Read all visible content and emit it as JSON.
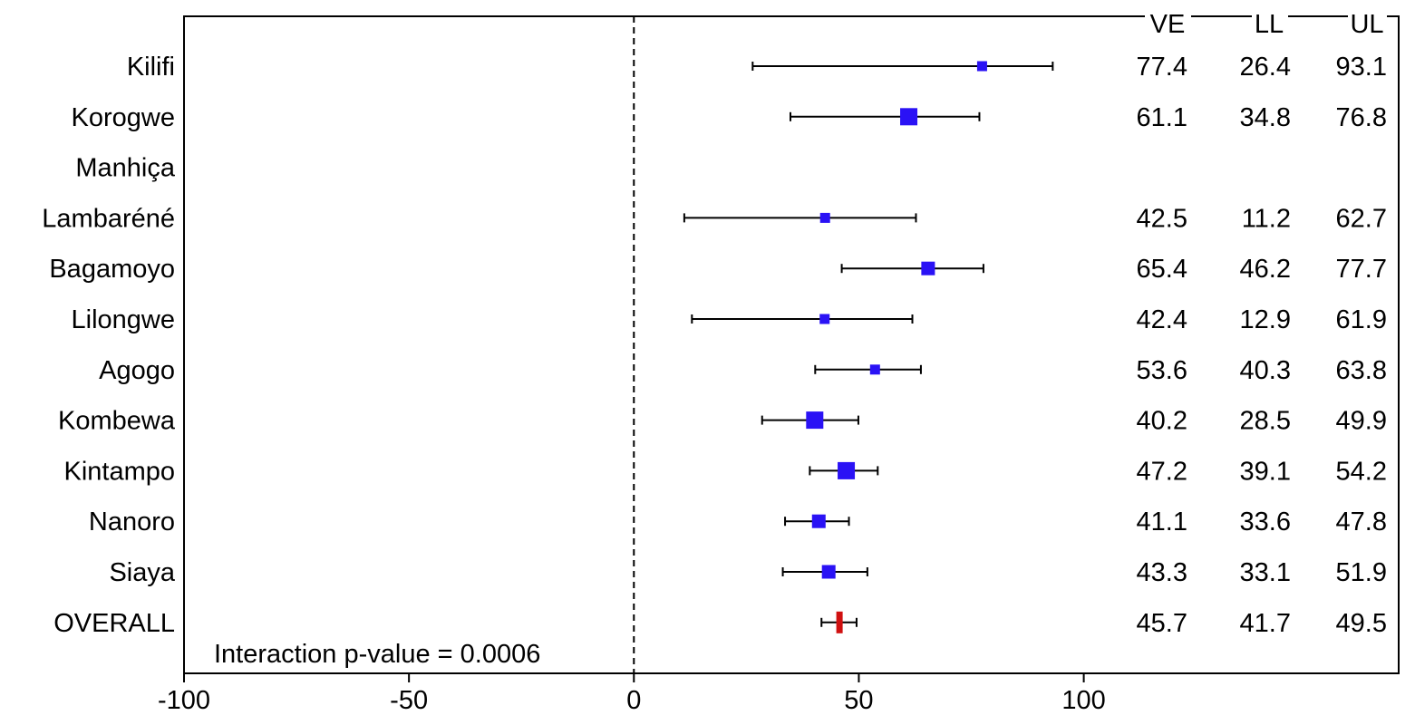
{
  "chart_data": {
    "type": "forest",
    "xlim": [
      -100,
      170
    ],
    "xticks": [
      "-100",
      "-50",
      "0",
      "50",
      "100"
    ],
    "reference_line": 0,
    "column_headers": [
      "VE",
      "LL",
      "UL"
    ],
    "annotation": "Interaction p-value = 0.0006",
    "colors": {
      "site_marker": "#2a12f5",
      "overall_marker": "#d01010",
      "ci_line": "#000000",
      "axis": "#000000"
    },
    "rows": [
      {
        "label": "Kilifi",
        "ve": 77.4,
        "ll": 26.4,
        "ul": 93.1,
        "ve_text": "77.4",
        "ll_text": "26.4",
        "ul_text": "93.1",
        "weight": "small"
      },
      {
        "label": "Korogwe",
        "ve": 61.1,
        "ll": 34.8,
        "ul": 76.8,
        "ve_text": "61.1",
        "ll_text": "34.8",
        "ul_text": "76.8",
        "weight": "large"
      },
      {
        "label": "Manhiça",
        "ve": null,
        "ll": null,
        "ul": null,
        "ve_text": "",
        "ll_text": "",
        "ul_text": "",
        "weight": "none"
      },
      {
        "label": "Lambaréné",
        "ve": 42.5,
        "ll": 11.2,
        "ul": 62.7,
        "ve_text": "42.5",
        "ll_text": "11.2",
        "ul_text": "62.7",
        "weight": "small"
      },
      {
        "label": "Bagamoyo",
        "ve": 65.4,
        "ll": 46.2,
        "ul": 77.7,
        "ve_text": "65.4",
        "ll_text": "46.2",
        "ul_text": "77.7",
        "weight": "medium"
      },
      {
        "label": "Lilongwe",
        "ve": 42.4,
        "ll": 12.9,
        "ul": 61.9,
        "ve_text": "42.4",
        "ll_text": "12.9",
        "ul_text": "61.9",
        "weight": "small"
      },
      {
        "label": "Agogo",
        "ve": 53.6,
        "ll": 40.3,
        "ul": 63.8,
        "ve_text": "53.6",
        "ll_text": "40.3",
        "ul_text": "63.8",
        "weight": "small"
      },
      {
        "label": "Kombewa",
        "ve": 40.2,
        "ll": 28.5,
        "ul": 49.9,
        "ve_text": "40.2",
        "ll_text": "28.5",
        "ul_text": "49.9",
        "weight": "large"
      },
      {
        "label": "Kintampo",
        "ve": 47.2,
        "ll": 39.1,
        "ul": 54.2,
        "ve_text": "47.2",
        "ll_text": "39.1",
        "ul_text": "54.2",
        "weight": "large"
      },
      {
        "label": "Nanoro",
        "ve": 41.1,
        "ll": 33.6,
        "ul": 47.8,
        "ve_text": "41.1",
        "ll_text": "33.6",
        "ul_text": "47.8",
        "weight": "medium"
      },
      {
        "label": "Siaya",
        "ve": 43.3,
        "ll": 33.1,
        "ul": 51.9,
        "ve_text": "43.3",
        "ll_text": "33.1",
        "ul_text": "51.9",
        "weight": "medium"
      },
      {
        "label": "OVERALL",
        "ve": 45.7,
        "ll": 41.7,
        "ul": 49.5,
        "ve_text": "45.7",
        "ll_text": "41.7",
        "ul_text": "49.5",
        "weight": "overall"
      }
    ]
  }
}
